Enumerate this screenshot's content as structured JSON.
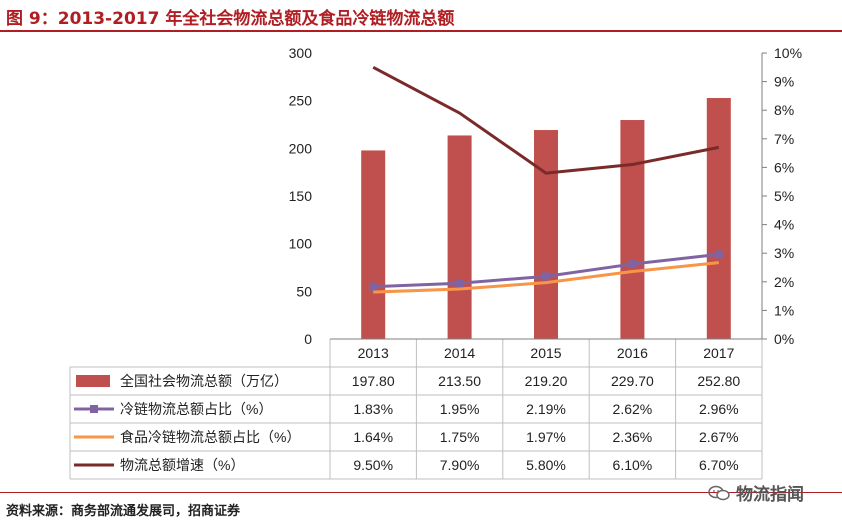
{
  "figure": {
    "title": "图 9：2013-2017 年全社会物流总额及食品冷链物流总额",
    "source": "资料来源：商务部流通发展司，招商证券",
    "watermark": "物流指闻"
  },
  "colors": {
    "title": "#b01e23",
    "bar": "#c0504d",
    "cold_chain_share": "#8064a2",
    "food_cold_chain_share": "#f79646",
    "growth": "#7b2a2a",
    "grid": "#bfbfbf"
  },
  "chart_data": {
    "type": "bar",
    "categories": [
      "2013",
      "2014",
      "2015",
      "2016",
      "2017"
    ],
    "left_axis": {
      "ylim": [
        0,
        300
      ],
      "ticks": [
        "0",
        "50",
        "100",
        "150",
        "200",
        "250",
        "300"
      ]
    },
    "right_axis": {
      "ylim": [
        0,
        10
      ],
      "ticks": [
        "0%",
        "1%",
        "2%",
        "3%",
        "4%",
        "5%",
        "6%",
        "7%",
        "8%",
        "9%",
        "10%"
      ]
    },
    "series": [
      {
        "name": "全国社会物流总额（万亿）",
        "type": "bar",
        "axis": "left",
        "values": [
          197.8,
          213.5,
          219.2,
          229.7,
          252.8
        ],
        "labels": [
          "197.80",
          "213.50",
          "219.20",
          "229.70",
          "252.80"
        ]
      },
      {
        "name": "冷链物流总额占比（%）",
        "type": "line",
        "marker": "square",
        "axis": "right",
        "values": [
          1.83,
          1.95,
          2.19,
          2.62,
          2.96
        ],
        "labels": [
          "1.83%",
          "1.95%",
          "2.19%",
          "2.62%",
          "2.96%"
        ]
      },
      {
        "name": "食品冷链物流总额占比（%）",
        "type": "line",
        "axis": "right",
        "values": [
          1.64,
          1.75,
          1.97,
          2.36,
          2.67
        ],
        "labels": [
          "1.64%",
          "1.75%",
          "1.97%",
          "2.36%",
          "2.67%"
        ]
      },
      {
        "name": "物流总额增速（%）",
        "type": "line",
        "axis": "right",
        "values": [
          9.5,
          7.9,
          5.8,
          6.1,
          6.7
        ],
        "labels": [
          "9.50%",
          "7.90%",
          "5.80%",
          "6.10%",
          "6.70%"
        ]
      }
    ]
  }
}
